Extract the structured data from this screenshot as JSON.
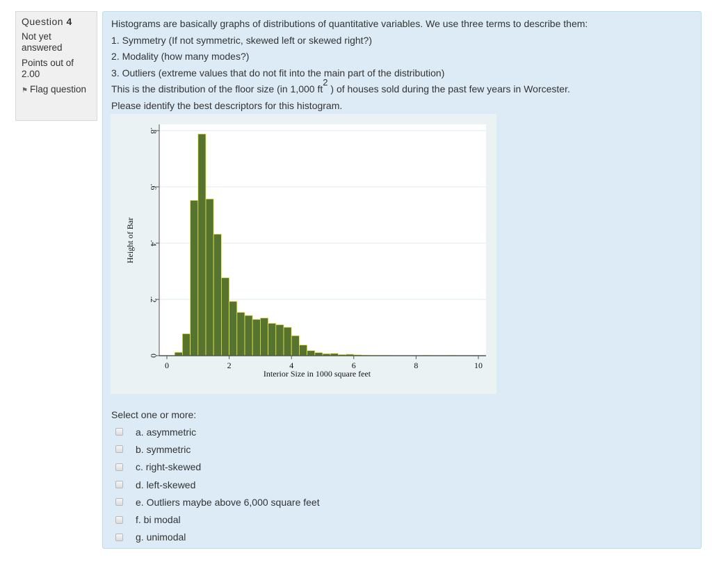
{
  "info": {
    "question_label": "Question",
    "question_number": "4",
    "state": "Not yet answered",
    "grade": "Points out of 2.00",
    "flag_icon": "flag-icon",
    "flag_label": "Flag question"
  },
  "question": {
    "lines": [
      "Histograms are basically graphs of distributions of quantitative variables. We use three terms to describe them:",
      "1. Symmetry  (If not symmetric, skewed left or skewed right?)",
      "2. Modality (how many modes?)",
      "3. Outliers (extreme values that do not fit into the main part of the distribution)"
    ],
    "dist_before": "This is the distribution of the floor size (in 1,000 ft",
    "dist_sup": "2",
    "dist_after": ") of houses sold during the past few years in Worcester.",
    "instruction": "Please identify the best descriptors for this histogram."
  },
  "chart_data": {
    "type": "bar",
    "title": "",
    "xlabel": "Interior Size in 1000 square feet",
    "ylabel": "Height of Bar",
    "xlim": [
      0,
      10
    ],
    "ylim": [
      0,
      0.8
    ],
    "xticks": [
      "0",
      "2",
      "4",
      "6",
      "8",
      "10"
    ],
    "yticks": [
      "0",
      ".2",
      ".4",
      ".6",
      ".8"
    ],
    "grid": true,
    "bin_width": 0.25,
    "bin_starts": [
      0.25,
      0.5,
      0.75,
      1.0,
      1.25,
      1.5,
      1.75,
      2.0,
      2.25,
      2.5,
      2.75,
      3.0,
      3.25,
      3.5,
      3.75,
      4.0,
      4.25,
      4.5,
      4.75,
      5.0,
      5.25,
      5.5,
      5.75,
      6.0,
      6.25,
      6.5,
      6.75,
      7.0,
      8.25,
      9.0
    ],
    "values": [
      0.012,
      0.078,
      0.552,
      0.788,
      0.557,
      0.432,
      0.277,
      0.193,
      0.154,
      0.143,
      0.129,
      0.134,
      0.115,
      0.11,
      0.101,
      0.071,
      0.038,
      0.018,
      0.011,
      0.007,
      0.008,
      0.004,
      0.005,
      0.003,
      0.002,
      0.001,
      0.001,
      0.001,
      0.001,
      0.001
    ],
    "bar_color": "#56732f",
    "bar_edge_color": "#e8e84a"
  },
  "answer": {
    "prompt": "Select one or more:",
    "options": [
      {
        "label": "a. asymmetric",
        "checked": false
      },
      {
        "label": "b. symmetric",
        "checked": false
      },
      {
        "label": "c. right-skewed",
        "checked": false
      },
      {
        "label": "d. left-skewed",
        "checked": false
      },
      {
        "label": "e. Outliers maybe above 6,000 square feet",
        "checked": false
      },
      {
        "label": "f. bi modal",
        "checked": false
      },
      {
        "label": "g. unimodal",
        "checked": false
      }
    ]
  }
}
